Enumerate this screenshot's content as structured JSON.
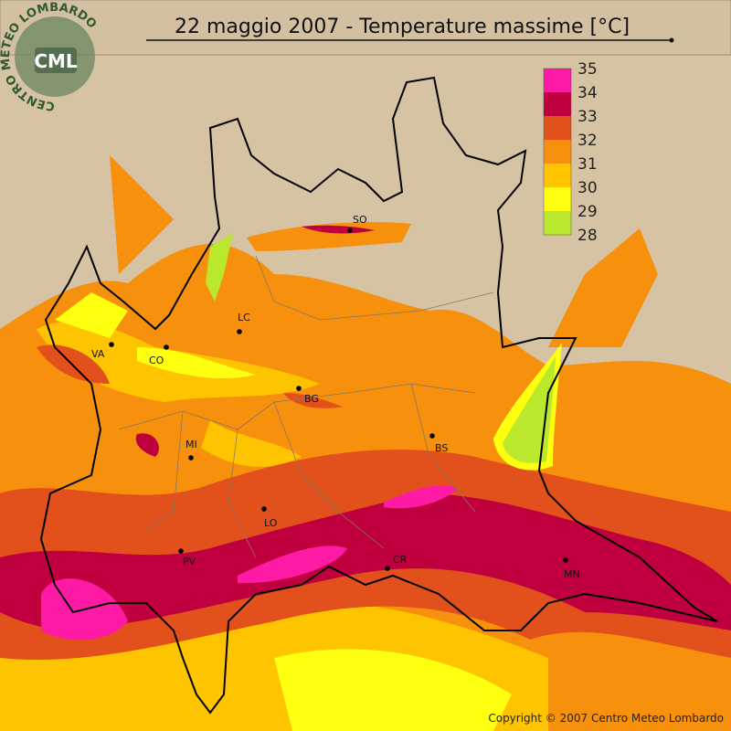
{
  "title": "22 maggio 2007 - Temperature massime [°C]",
  "logo": {
    "text": "CML",
    "ring": "CENTRO METEO LOMBARDO"
  },
  "legend": {
    "labels": [
      35,
      34,
      33,
      32,
      31,
      30,
      29,
      28
    ],
    "colors": [
      "#ff1aa6",
      "#c0003e",
      "#e2501c",
      "#f7900c",
      "#ffc400",
      "#ffff10",
      "#b9e82c"
    ]
  },
  "cities": [
    {
      "label": "SO"
    },
    {
      "label": "LC"
    },
    {
      "label": "VA"
    },
    {
      "label": "CO"
    },
    {
      "label": "BG"
    },
    {
      "label": "MI"
    },
    {
      "label": "BS"
    },
    {
      "label": "LO"
    },
    {
      "label": "PV"
    },
    {
      "label": "CR"
    },
    {
      "label": "MN"
    }
  ],
  "copyright": "Copyright © 2007 Centro Meteo Lombardo"
}
